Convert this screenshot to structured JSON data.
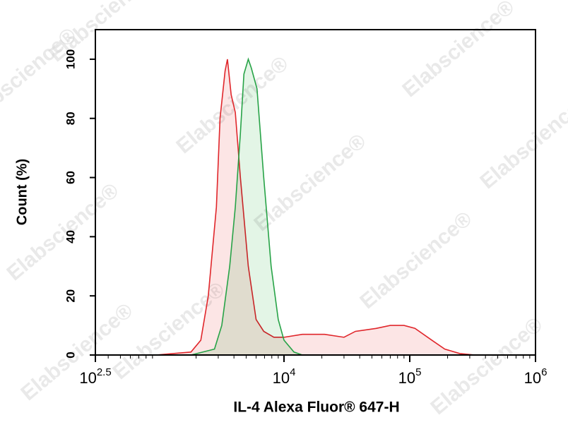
{
  "chart_data": {
    "type": "area",
    "xlabel": "IL-4 Alexa Fluor® 647-H",
    "ylabel": "Count (%)",
    "watermark": "Elabscience®",
    "xscale": "log",
    "xlim": [
      316.228,
      1000000
    ],
    "ylim": [
      0,
      110
    ],
    "xticks": [
      {
        "value": 316.228,
        "label": "10",
        "exponent": "2.5"
      },
      {
        "value": 10000,
        "label": "10",
        "exponent": "4"
      },
      {
        "value": 100000,
        "label": "10",
        "exponent": "5"
      },
      {
        "value": 1000000,
        "label": "10",
        "exponent": "6"
      }
    ],
    "yticks": [
      0,
      20,
      40,
      60,
      80,
      100
    ],
    "series": [
      {
        "color": "#e0262b",
        "fill": "#fbdcdc",
        "x": [
          960,
          1820,
          2180,
          2500,
          2900,
          3100,
          3400,
          3550,
          3800,
          4100,
          4500,
          5200,
          6000,
          6900,
          8300,
          10000,
          14000,
          21000,
          30000,
          37000,
          54000,
          70000,
          90000,
          110000,
          150000,
          190000,
          250000,
          330000
        ],
        "values": [
          0,
          1,
          5,
          20,
          50,
          80,
          96,
          100,
          88,
          82,
          60,
          30,
          12,
          8,
          6,
          6,
          7,
          7,
          6,
          8,
          9,
          10,
          10,
          9,
          5,
          2,
          0.5,
          0
        ]
      },
      {
        "color": "#27a347",
        "fill": "#d9f2dd",
        "x": [
          1820,
          2800,
          3200,
          3700,
          4100,
          4500,
          4800,
          5200,
          5500,
          6100,
          6900,
          7900,
          9000,
          10000,
          12000,
          14000
        ],
        "values": [
          0,
          2,
          10,
          30,
          50,
          75,
          95,
          100,
          97,
          90,
          60,
          30,
          12,
          5,
          1,
          0
        ]
      }
    ]
  }
}
